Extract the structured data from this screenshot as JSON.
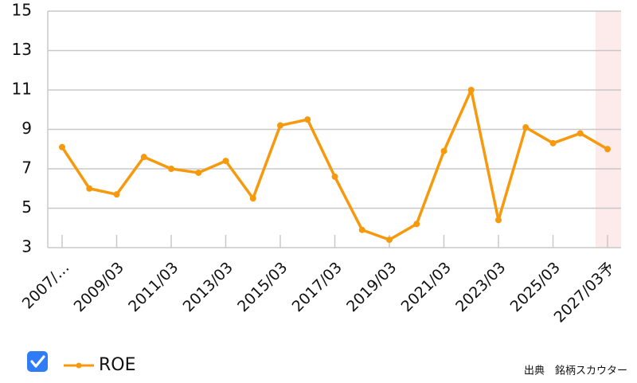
{
  "chart_data": {
    "type": "line",
    "categories": [
      "2007/…",
      null,
      "2009/03",
      null,
      "2011/03",
      null,
      "2013/03",
      null,
      "2015/03",
      null,
      "2017/03",
      null,
      "2019/03",
      null,
      "2021/03",
      null,
      "2023/03",
      null,
      "2025/03",
      null,
      "2027/03予"
    ],
    "series": [
      {
        "name": "ROE",
        "color": "#f7990c",
        "values": [
          8.1,
          6.0,
          5.7,
          7.6,
          7.0,
          6.8,
          7.4,
          5.5,
          9.2,
          9.5,
          6.6,
          3.9,
          3.4,
          4.2,
          7.9,
          11.0,
          4.4,
          9.1,
          8.3,
          8.8,
          8.0
        ]
      }
    ],
    "ylim": [
      3,
      15
    ],
    "yticks": [
      3,
      5,
      7,
      9,
      11,
      13,
      15
    ],
    "grid": true,
    "source": "出典　銘柄スカウター"
  }
}
